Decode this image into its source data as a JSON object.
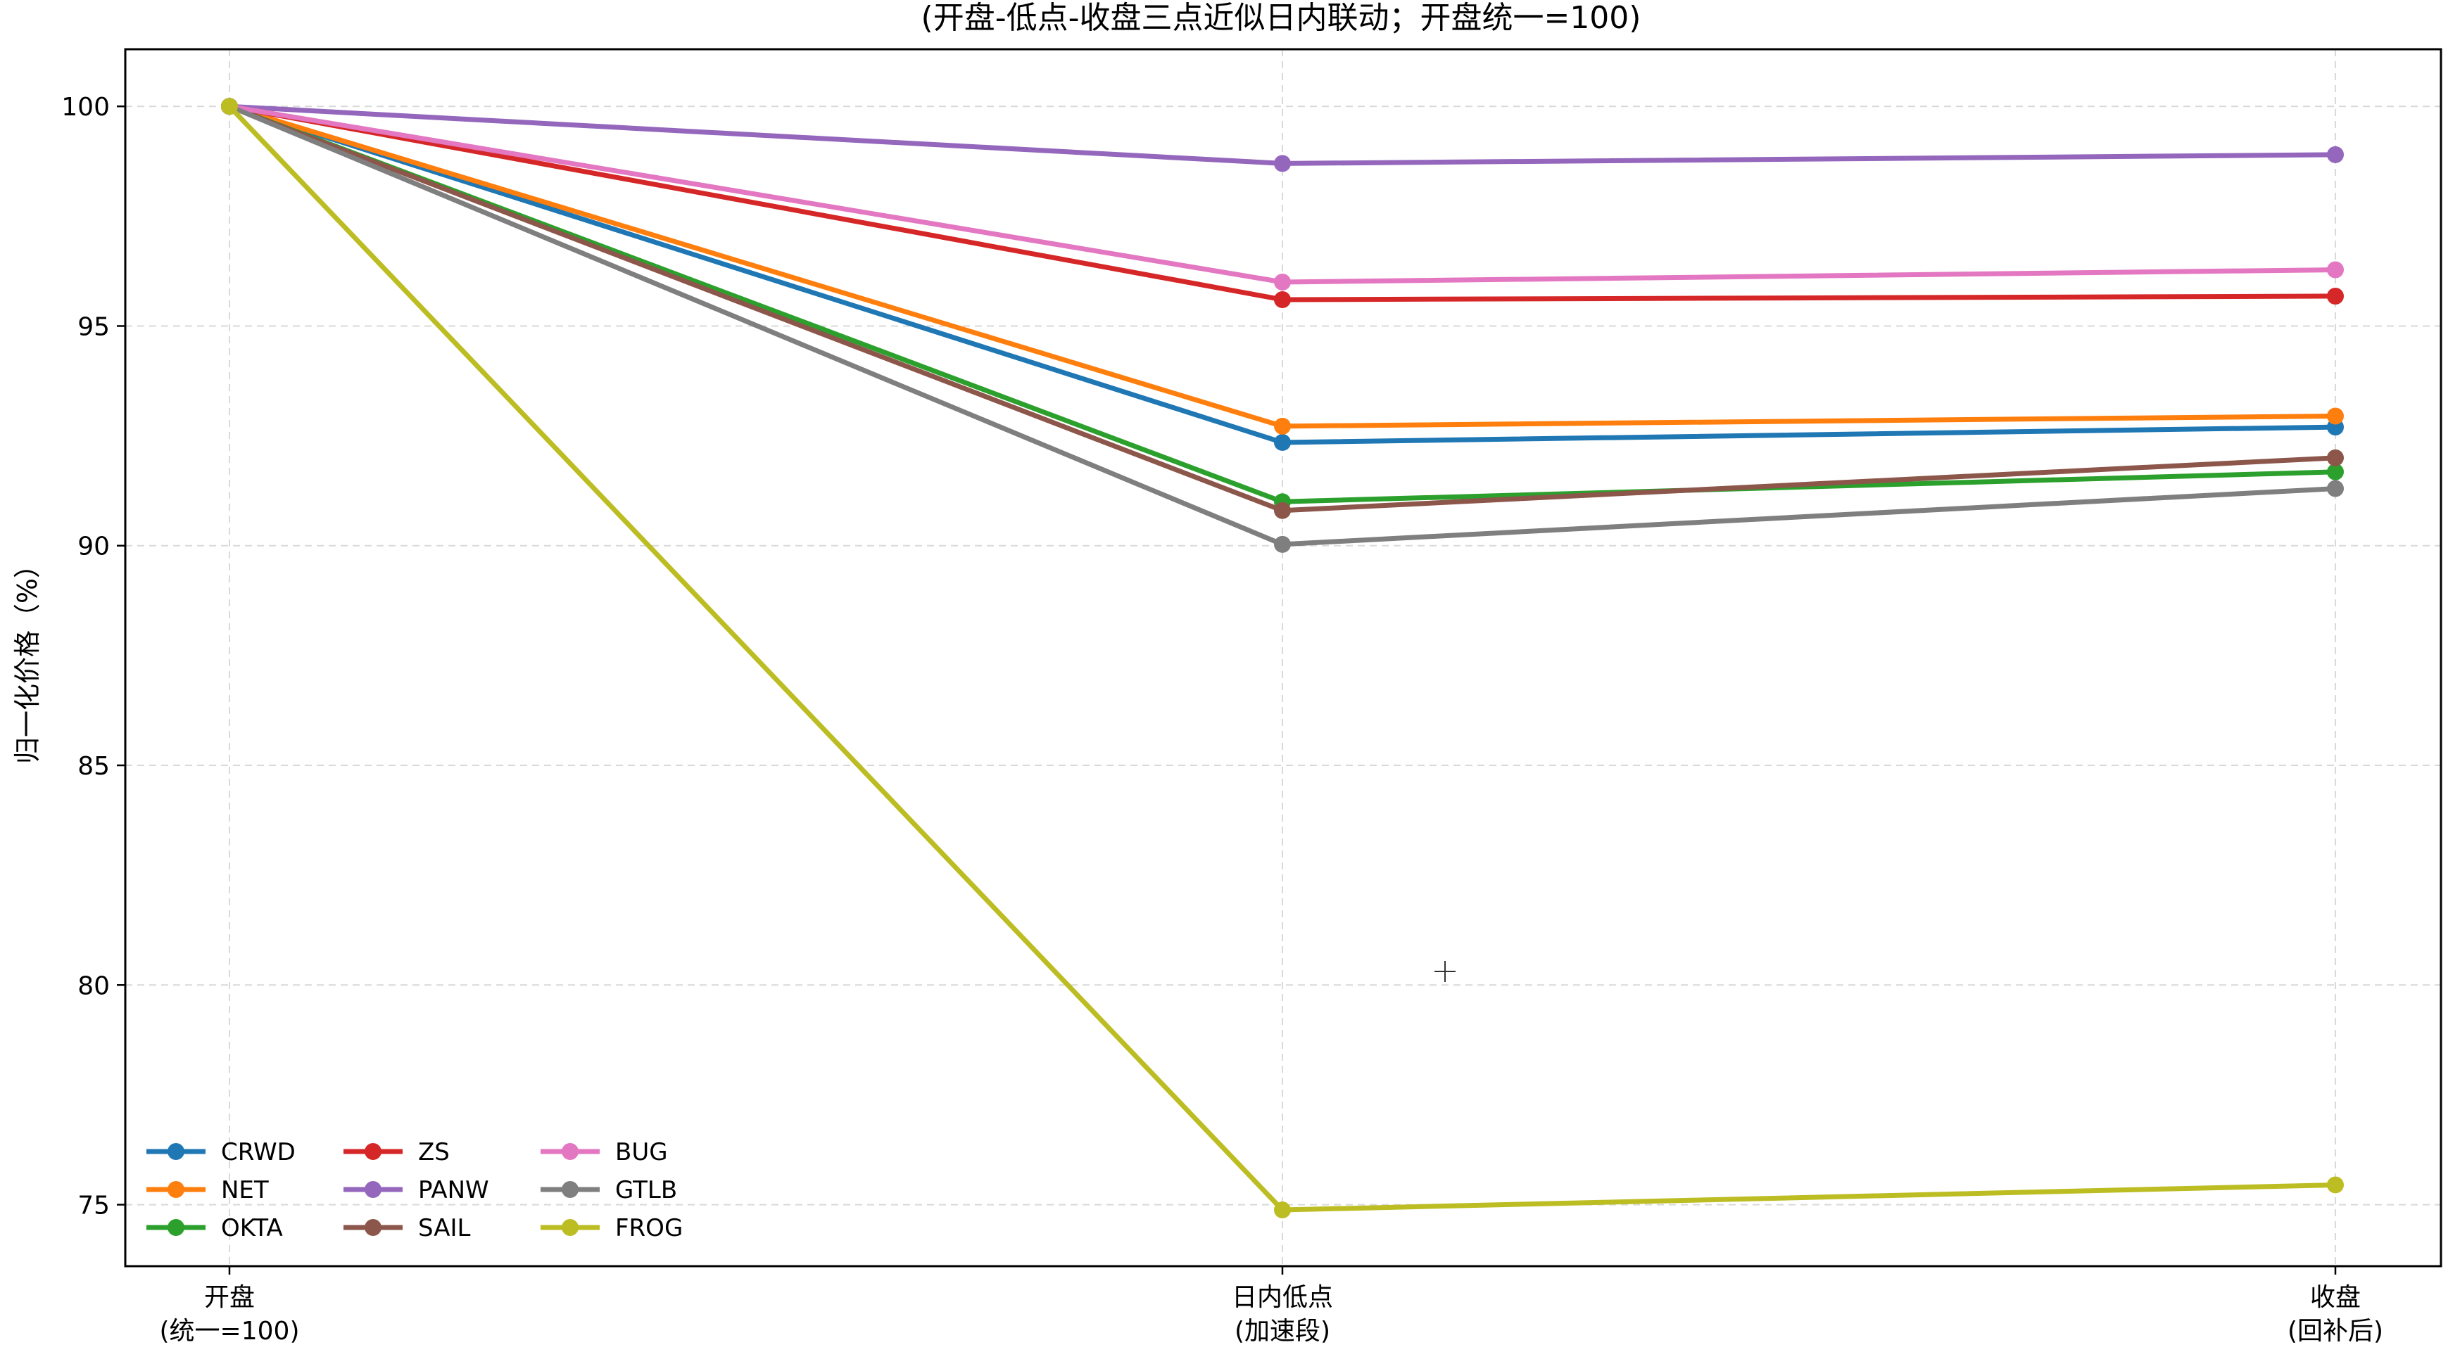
{
  "chart_data": {
    "type": "line",
    "title": "(开盘-低点-收盘三点近似日内联动；开盘统一=100)",
    "xlabel": "",
    "ylabel": "归一化价格（%）",
    "categories": [
      [
        "开盘",
        "(统一=100)"
      ],
      [
        "日内低点",
        "(加速段)"
      ],
      [
        "收盘",
        "(回补后)"
      ]
    ],
    "ylim": [
      73.6,
      101.3
    ],
    "yticks": [
      75,
      80,
      85,
      90,
      95,
      100
    ],
    "grid": true,
    "legend_position": "lower-left",
    "series": [
      {
        "name": "CRWD",
        "color": "#1f77b4",
        "values": [
          100,
          92.35,
          92.7
        ]
      },
      {
        "name": "NET",
        "color": "#ff7f0e",
        "values": [
          100,
          92.72,
          92.95
        ]
      },
      {
        "name": "OKTA",
        "color": "#2ca02c",
        "values": [
          100,
          91.0,
          91.68
        ]
      },
      {
        "name": "ZS",
        "color": "#d62728",
        "values": [
          100,
          95.6,
          95.68
        ]
      },
      {
        "name": "PANW",
        "color": "#9467bd",
        "values": [
          100,
          98.7,
          98.9
        ]
      },
      {
        "name": "SAIL",
        "color": "#8c564b",
        "values": [
          100,
          90.8,
          92.0
        ]
      },
      {
        "name": "BUG",
        "color": "#e377c2",
        "values": [
          100,
          96.0,
          96.28
        ]
      },
      {
        "name": "GTLB",
        "color": "#7f7f7f",
        "values": [
          100,
          90.03,
          91.3
        ]
      },
      {
        "name": "FROG",
        "color": "#bcbd22",
        "values": [
          100,
          74.88,
          75.45
        ]
      }
    ]
  },
  "cursor_icon": "crosshair-cursor-icon"
}
